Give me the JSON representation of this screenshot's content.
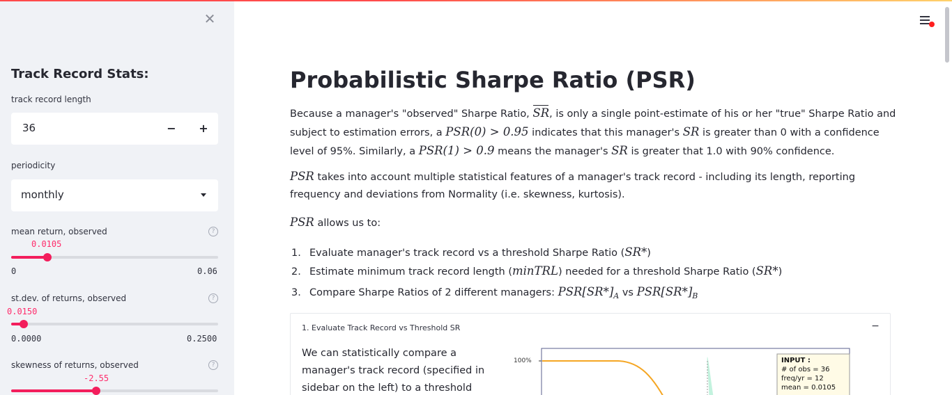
{
  "sidebar": {
    "close_icon": "close-icon",
    "title": "Track Record Stats:",
    "track_length": {
      "label": "track record length",
      "value": "36",
      "minus": "−",
      "plus": "+"
    },
    "periodicity": {
      "label": "periodicity",
      "value": "monthly"
    },
    "mean_return": {
      "label": "mean return, observed",
      "value": "0.0105",
      "min": "0",
      "max": "0.06",
      "fraction": 0.175
    },
    "stdev": {
      "label": "st.dev. of returns, observed",
      "value": "0.0150",
      "min": "0.0000",
      "max": "0.2500",
      "fraction": 0.06
    },
    "skew": {
      "label": "skewness of returns, observed",
      "value": "-2.55",
      "fraction": 0.41
    }
  },
  "header": {
    "menu_icon": "hamburger-menu-icon"
  },
  "main": {
    "title": "Probabilistic Sharpe Ratio (PSR)",
    "p1": {
      "a": "Because a manager's \"observed\" Sharpe Ratio, ",
      "sr_hat": "SR",
      "b": ", is only a single point-estimate of his or her \"true\" Sharpe Ratio and subject to estimation errors, a ",
      "m1": "PSR(0) > 0.95",
      "c": " indicates that this manager's ",
      "m2": "SR",
      "d": " is greater than 0 with a confidence level of 95%. Similarly, a ",
      "m3": "PSR(1) > 0.9",
      "e": " means the manager's ",
      "m4": "SR",
      "f": " is greater that 1.0 with 90% confidence."
    },
    "p2": {
      "m": "PSR",
      "t": " takes into account multiple statistical features of a manager's track record - including its length, reporting frequency and deviations from Normality (i.e. skewness, kurtosis)."
    },
    "p3": {
      "m": "PSR",
      "t": " allows us to:"
    },
    "list": [
      {
        "num": "1.",
        "text": "Evaluate manager's track record vs a threshold Sharpe Ratio (",
        "math": "SR*",
        "end": ")"
      },
      {
        "num": "2.",
        "text": "Estimate minimum track record length (",
        "math": "minTRL",
        "mid": ") needed for a threshold Sharpe Ratio (",
        "math2": "SR*",
        "end": ")"
      },
      {
        "num": "3.",
        "text": "Compare Sharpe Ratios of 2 different managers: ",
        "math": "PSR[SR*]",
        "sub": "A",
        "mid": " vs ",
        "math2": "PSR[SR*]",
        "sub2": "B"
      }
    ],
    "expander": {
      "title": "1. Evaluate Track Record vs Threshold SR",
      "collapse": "−",
      "text": "We can statistically compare a manager's track record (specified in sidebar on the left) to a threshold",
      "plot_ytick": "100%",
      "input_box": [
        "INPUT :",
        "# of obs = 36",
        "freq/yr = 12",
        "mean = 0.0105"
      ]
    }
  },
  "colors": {
    "accent": "#ff2b6b",
    "sidebar_bg": "#f0f2f6",
    "curve": "#f5a623",
    "dist": "#b8f0d8"
  }
}
